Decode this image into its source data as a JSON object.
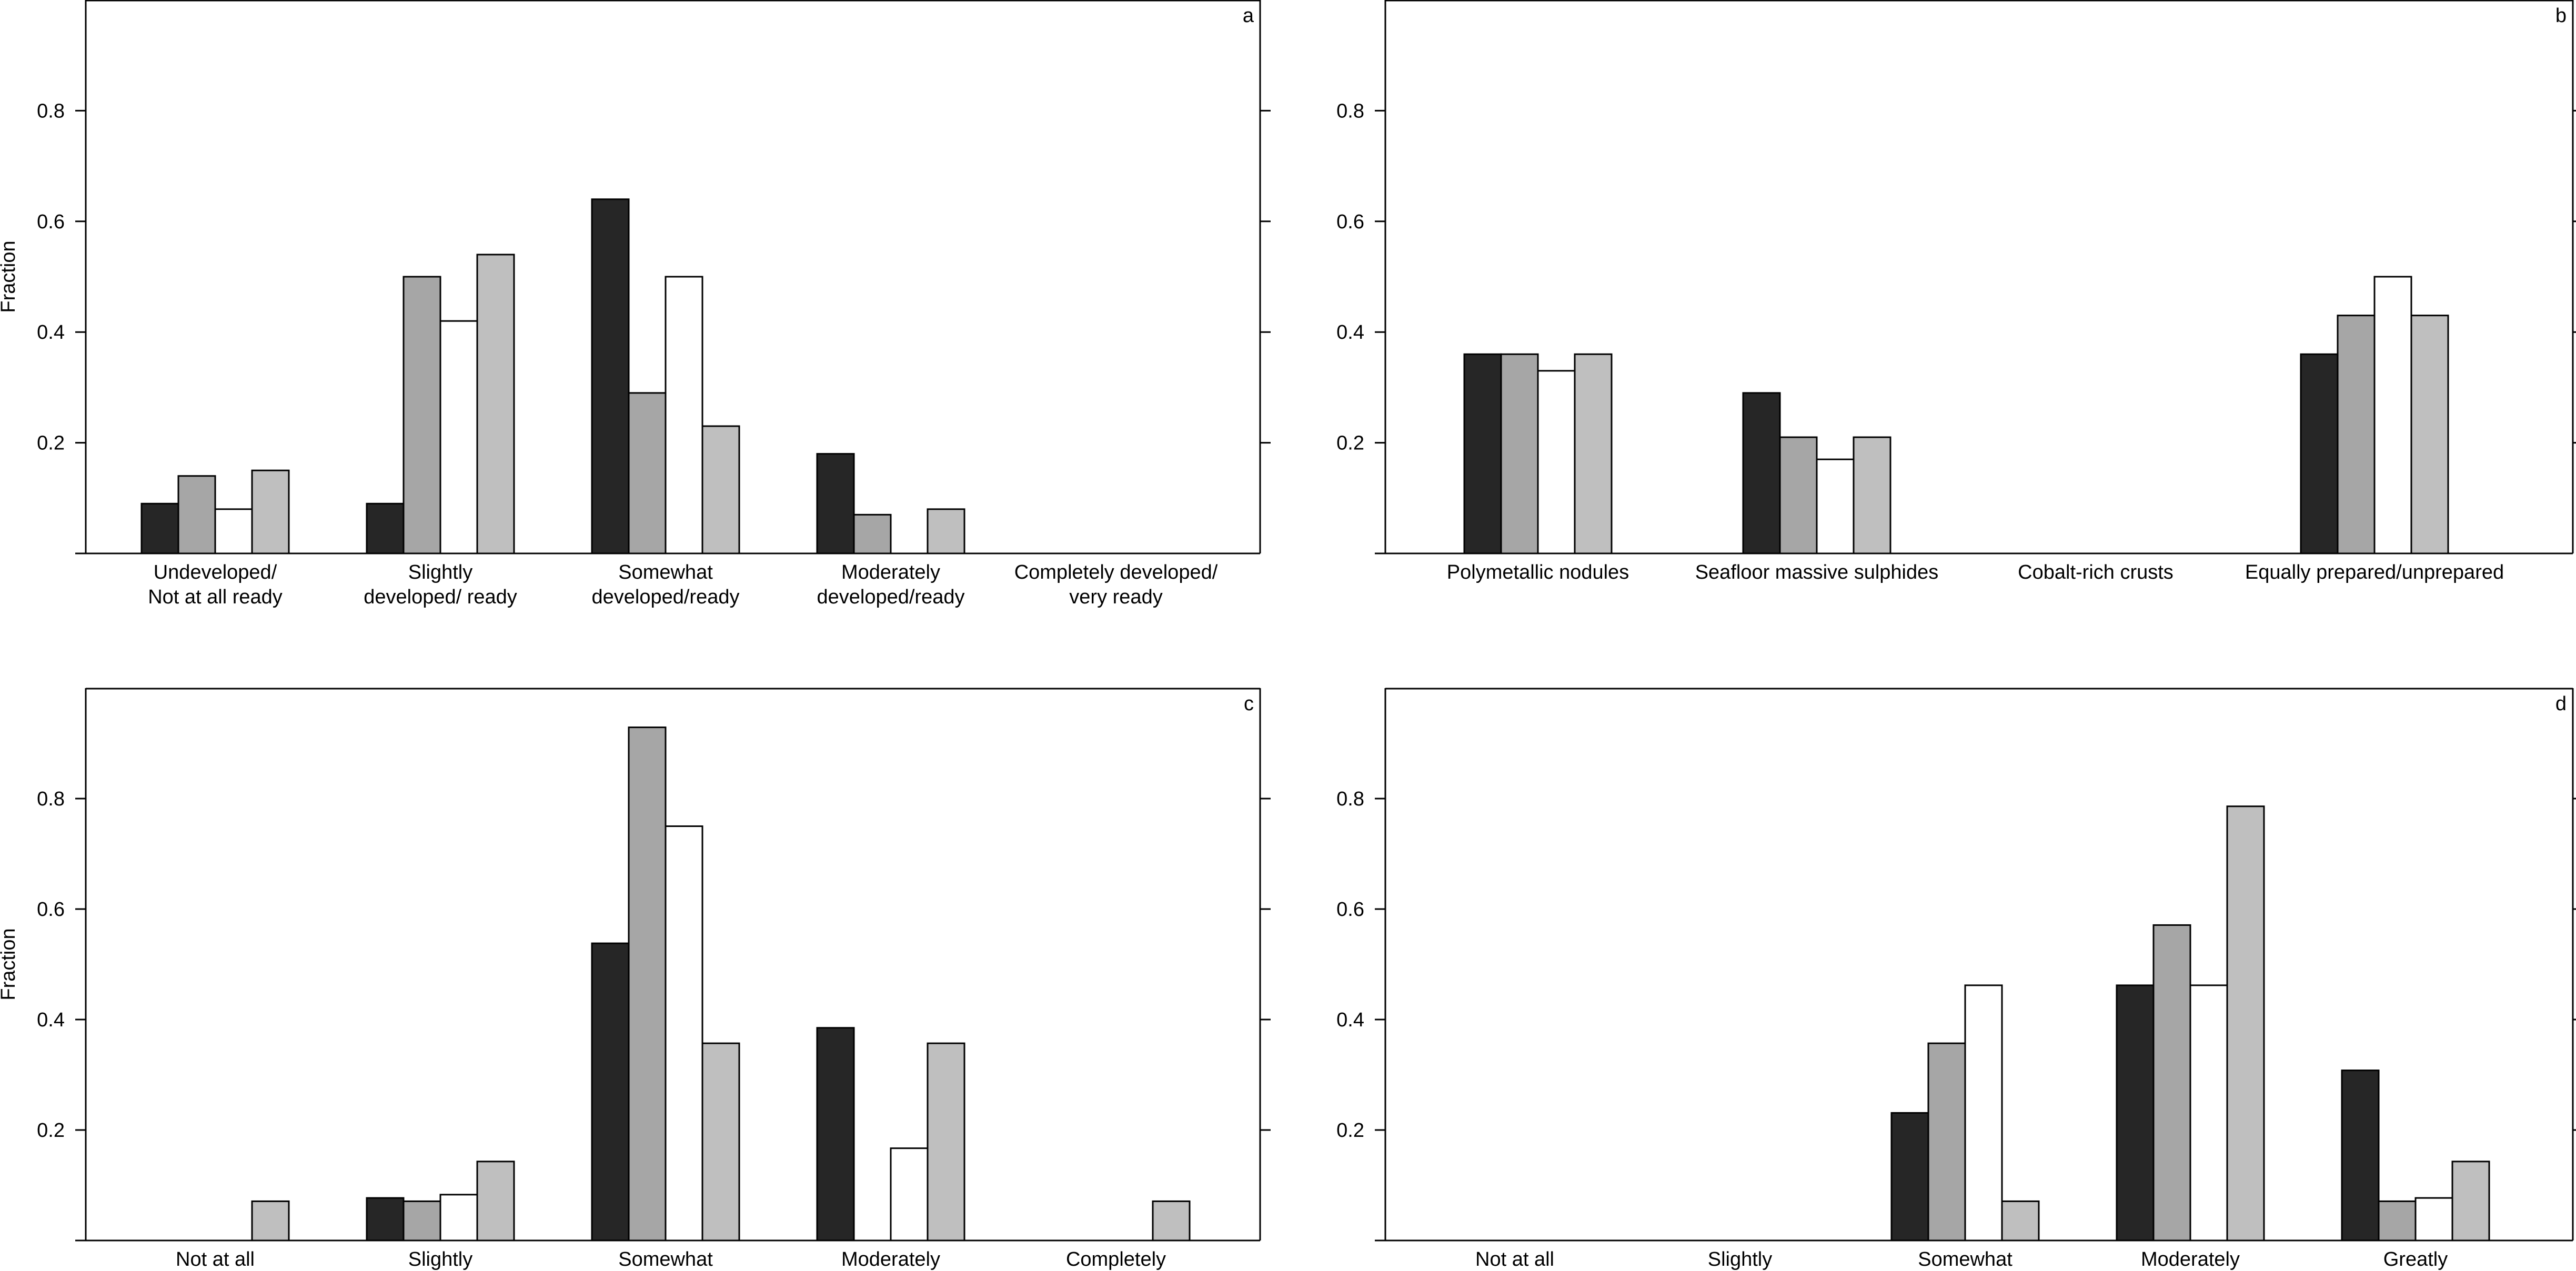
{
  "chart_data": [
    {
      "panel": "a",
      "type": "bar",
      "ylabel": "Fraction",
      "ylim": [
        0,
        1.0
      ],
      "yticks": [
        "0.2",
        "0.4",
        "0.6",
        "0.8"
      ],
      "categories": [
        [
          "Undeveloped/",
          "Not at all ready"
        ],
        [
          "Slightly",
          "developed/ ready"
        ],
        [
          "Somewhat",
          "developed/ready"
        ],
        [
          "Moderately",
          "developed/ready"
        ],
        [
          "Completely developed/",
          "very ready"
        ]
      ],
      "series": [
        {
          "values": [
            0.09,
            0.09,
            0.64,
            0.18,
            0
          ],
          "color": "#262626"
        },
        {
          "values": [
            0.14,
            0.5,
            0.29,
            0.07,
            0
          ],
          "color": "#a6a6a6"
        },
        {
          "values": [
            0.08,
            0.42,
            0.5,
            0,
            0
          ],
          "color": "#ffffff"
        },
        {
          "values": [
            0.15,
            0.54,
            0.23,
            0.08,
            0
          ],
          "color": "#bfbfbf"
        }
      ]
    },
    {
      "panel": "b",
      "type": "bar",
      "ylabel": "",
      "ylim": [
        0,
        1.0
      ],
      "yticks": [
        "0.2",
        "0.4",
        "0.6",
        "0.8"
      ],
      "categories": [
        [
          "Polymetallic nodules"
        ],
        [
          "Seafloor massive sulphides"
        ],
        [
          "Cobalt-rich crusts"
        ],
        [
          "Equally prepared/unprepared"
        ]
      ],
      "series": [
        {
          "values": [
            0.36,
            0.29,
            0,
            0.36
          ],
          "color": "#262626"
        },
        {
          "values": [
            0.36,
            0.21,
            0,
            0.43
          ],
          "color": "#a6a6a6"
        },
        {
          "values": [
            0.33,
            0.17,
            0,
            0.5
          ],
          "color": "#ffffff"
        },
        {
          "values": [
            0.36,
            0.21,
            0,
            0.43
          ],
          "color": "#bfbfbf"
        }
      ]
    },
    {
      "panel": "c",
      "type": "bar",
      "ylabel": "Fraction",
      "ylim": [
        0,
        1.0
      ],
      "yticks": [
        "0.2",
        "0.4",
        "0.6",
        "0.8"
      ],
      "categories": [
        [
          "Not at all"
        ],
        [
          "Slightly"
        ],
        [
          "Somewhat"
        ],
        [
          "Moderately"
        ],
        [
          "Completely"
        ]
      ],
      "series": [
        {
          "values": [
            0,
            0.077,
            0.538,
            0.385,
            0
          ],
          "color": "#262626"
        },
        {
          "values": [
            0,
            0.071,
            0.929,
            0,
            0
          ],
          "color": "#a6a6a6"
        },
        {
          "values": [
            0,
            0.083,
            0.75,
            0.167,
            0
          ],
          "color": "#ffffff"
        },
        {
          "values": [
            0.071,
            0.143,
            0.357,
            0.357,
            0.071
          ],
          "color": "#bfbfbf"
        }
      ]
    },
    {
      "panel": "d",
      "type": "bar",
      "ylabel": "",
      "ylim": [
        0,
        1.0
      ],
      "yticks": [
        "0.2",
        "0.4",
        "0.6",
        "0.8"
      ],
      "categories": [
        [
          "Not at all"
        ],
        [
          "Slightly"
        ],
        [
          "Somewhat"
        ],
        [
          "Moderately"
        ],
        [
          "Greatly"
        ]
      ],
      "series": [
        {
          "values": [
            0,
            0,
            0.231,
            0.462,
            0.308
          ],
          "color": "#262626"
        },
        {
          "values": [
            0,
            0,
            0.357,
            0.571,
            0.071
          ],
          "color": "#a6a6a6"
        },
        {
          "values": [
            0,
            0,
            0.462,
            0.462,
            0.077
          ],
          "color": "#ffffff"
        },
        {
          "values": [
            0,
            0,
            0.071,
            0.786,
            0.143
          ],
          "color": "#bfbfbf"
        }
      ]
    }
  ]
}
